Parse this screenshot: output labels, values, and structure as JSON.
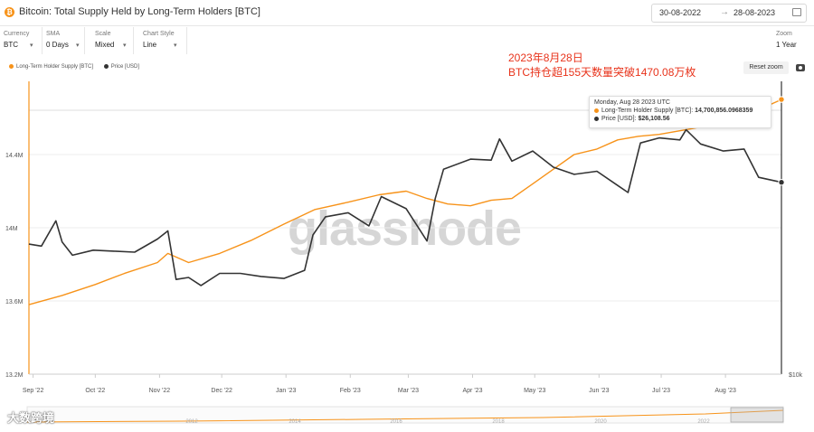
{
  "header": {
    "title": "Bitcoin: Total Supply Held by Long-Term Holders [BTC]",
    "logo_glyph": "₿",
    "date_from": "30-08-2022",
    "date_arrow": "→",
    "date_to": "28-08-2023"
  },
  "controls": [
    {
      "label": "Currency",
      "value": "BTC"
    },
    {
      "label": "SMA",
      "value": "0 Days"
    },
    {
      "label": "Scale",
      "value": "Mixed"
    },
    {
      "label": "Chart Style",
      "value": "Line"
    }
  ],
  "zoom": {
    "label": "Zoom",
    "value": "1 Year"
  },
  "legend": [
    {
      "label": "Long-Term Holder Supply [BTC]",
      "color": "#f7931a"
    },
    {
      "label": "Price [USD]",
      "color": "#333333"
    }
  ],
  "reset_zoom": "Reset zoom",
  "annotation": {
    "line1": "2023年8月28日",
    "line2": "BTC持仓超155天数量突破1470.08万枚"
  },
  "tooltip": {
    "date": "Monday, Aug 28 2023 UTC",
    "lth_label": "Long-Term Holder Supply [BTC]:",
    "lth_value": "14,700,856.0968359",
    "price_label": "Price [USD]:",
    "price_value": "$26,108.56"
  },
  "watermark": "glassnode",
  "brand": "大数跨境",
  "chart_data": {
    "type": "line",
    "x_ticks": [
      "Sep '22",
      "Oct '22",
      "Nov '22",
      "Dec '22",
      "Jan '23",
      "Feb '23",
      "Mar '23",
      "Apr '23",
      "May '23",
      "Jun '23",
      "Jul '23",
      "Aug '23"
    ],
    "y_left_ticks": [
      "14.4M",
      "14M",
      "13.6M",
      "13.2M"
    ],
    "y_left_range": [
      13200000,
      14800000
    ],
    "y_right_tick": "$10k",
    "navigator_years": [
      "2012",
      "2014",
      "2016",
      "2018",
      "2020",
      "2022"
    ],
    "series": [
      {
        "name": "Long-Term Holder Supply [BTC]",
        "axis": "left",
        "color": "#f7931a",
        "x": [
          "2022-08-30",
          "2022-09-15",
          "2022-10-01",
          "2022-10-15",
          "2022-10-31",
          "2022-11-05",
          "2022-11-15",
          "2022-11-30",
          "2022-12-15",
          "2022-12-31",
          "2023-01-15",
          "2023-01-31",
          "2023-02-15",
          "2023-02-28",
          "2023-03-10",
          "2023-03-20",
          "2023-03-31",
          "2023-04-10",
          "2023-04-20",
          "2023-04-30",
          "2023-05-10",
          "2023-05-20",
          "2023-05-31",
          "2023-06-10",
          "2023-06-20",
          "2023-06-30",
          "2023-07-10",
          "2023-07-20",
          "2023-07-31",
          "2023-08-10",
          "2023-08-20",
          "2023-08-28"
        ],
        "values": [
          13580000,
          13630000,
          13690000,
          13750000,
          13810000,
          13860000,
          13810000,
          13860000,
          13930000,
          14020000,
          14100000,
          14140000,
          14180000,
          14200000,
          14160000,
          14130000,
          14120000,
          14150000,
          14160000,
          14240000,
          14320000,
          14400000,
          14430000,
          14480000,
          14500000,
          14510000,
          14530000,
          14550000,
          14590000,
          14620000,
          14660000,
          14700856
        ]
      },
      {
        "name": "Price [USD]",
        "axis": "right",
        "color": "#333333",
        "x": [
          "2022-08-30",
          "2022-09-05",
          "2022-09-12",
          "2022-09-15",
          "2022-09-20",
          "2022-09-30",
          "2022-10-10",
          "2022-10-20",
          "2022-10-31",
          "2022-11-05",
          "2022-11-09",
          "2022-11-15",
          "2022-11-21",
          "2022-11-30",
          "2022-12-10",
          "2022-12-20",
          "2022-12-31",
          "2023-01-10",
          "2023-01-14",
          "2023-01-20",
          "2023-01-31",
          "2023-02-10",
          "2023-02-16",
          "2023-02-28",
          "2023-03-10",
          "2023-03-14",
          "2023-03-18",
          "2023-03-31",
          "2023-04-10",
          "2023-04-14",
          "2023-04-20",
          "2023-04-30",
          "2023-05-10",
          "2023-05-20",
          "2023-05-31",
          "2023-06-10",
          "2023-06-15",
          "2023-06-21",
          "2023-06-30",
          "2023-07-10",
          "2023-07-13",
          "2023-07-20",
          "2023-07-31",
          "2023-08-10",
          "2023-08-17",
          "2023-08-28"
        ],
        "values": [
          20000,
          19800,
          22300,
          20200,
          18900,
          19400,
          19300,
          19200,
          20500,
          21300,
          16500,
          16700,
          15900,
          17100,
          17100,
          16800,
          16600,
          17400,
          20900,
          22700,
          23100,
          21800,
          24700,
          23500,
          20300,
          24500,
          27400,
          28400,
          28300,
          30400,
          28200,
          29200,
          27600,
          26900,
          27200,
          25800,
          25100,
          30000,
          30500,
          30300,
          31300,
          29900,
          29200,
          29400,
          26600,
          26108.56
        ]
      }
    ]
  }
}
